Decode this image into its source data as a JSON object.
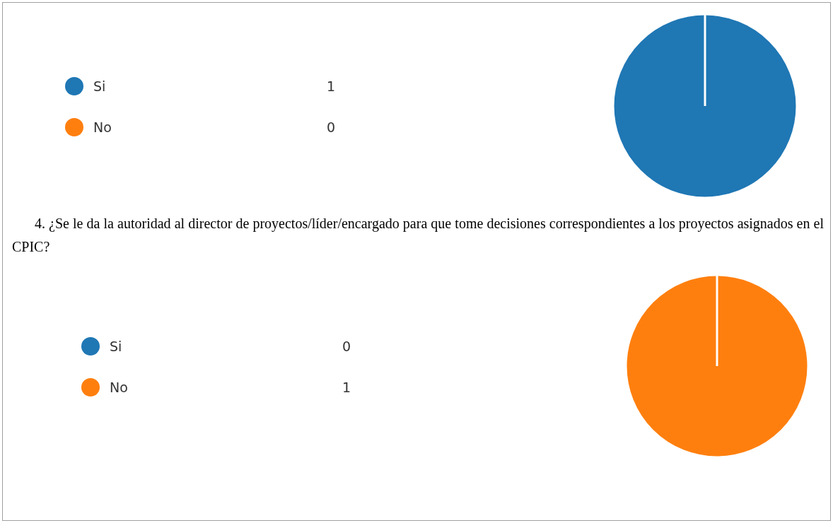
{
  "chart_data": [
    {
      "type": "pie",
      "categories": [
        "Si",
        "No"
      ],
      "values": [
        1,
        0
      ],
      "colors": [
        "#1f77b4",
        "#ff7f0e"
      ],
      "legend": "left",
      "value_labels": [
        "1",
        "0"
      ]
    },
    {
      "type": "pie",
      "title": "4. ¿Se le da la autoridad al director de proyectos/líder/encargado para que tome decisiones correspondientes a los proyectos asignados en el CPIC?",
      "categories": [
        "Si",
        "No"
      ],
      "values": [
        0,
        1
      ],
      "colors": [
        "#1f77b4",
        "#ff7f0e"
      ],
      "legend": "left",
      "value_labels": [
        "0",
        "1"
      ]
    }
  ]
}
